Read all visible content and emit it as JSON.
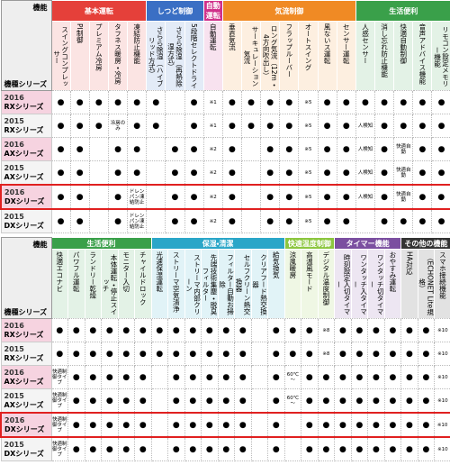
{
  "tables": [
    {
      "corner": {
        "top": "機能",
        "bottom": "機種シリーズ"
      },
      "groups": [
        {
          "name": "基本運転",
          "color": "#e5403a",
          "columns": [
            "スイングコンプレッサー",
            "PI制御",
            "プレミアム冷房",
            "タフネス暖房・冷房",
            "凍結防止機能"
          ]
        },
        {
          "name": "しつど制御",
          "color": "#3a6fc4",
          "columns": [
            "さらら除湿（ハイブリッド方式）",
            "さらら除湿（再熱除湿方式）",
            "5段階セレクトドライ"
          ]
        },
        {
          "name": "自動運転",
          "color": "#d0308a",
          "columns": [
            "自動運転"
          ]
        },
        {
          "name": "気流制御",
          "color": "#f08a24",
          "columns": [
            "垂直気流",
            "サーキュレーション気流",
            "ロング気流（12m・4方向吹出し）",
            "フラップルーバー",
            "オートスイング",
            "風ないス運転",
            "センサー運転"
          ]
        },
        {
          "name": "生活便利",
          "color": "#3aa04a",
          "columns": [
            "人感センサー",
            "消し忘れ防止機能",
            "快適自動制御",
            "音声アドバイス機能",
            "リモコン設定メモリー機能"
          ]
        }
      ],
      "rows": [
        {
          "year": "2016",
          "series": "RXシリーズ",
          "cells": [
            "●",
            "●",
            "●",
            "●",
            "●",
            "●",
            null,
            "●",
            "※1",
            "●",
            "●",
            "●",
            "●",
            "※5",
            "●",
            "●",
            "●",
            "●",
            "●",
            "●",
            "●"
          ]
        },
        {
          "year": "2015",
          "series": "RXシリーズ",
          "cells": [
            "●",
            "●",
            "●",
            "冷房のみ",
            "●",
            "●",
            null,
            "●",
            "※1",
            "●",
            "●",
            "●",
            "●",
            "※5",
            "●",
            "●",
            "人検知",
            "●",
            "●",
            "●",
            "●"
          ]
        },
        {
          "year": "2016",
          "series": "AXシリーズ",
          "cells": [
            "●",
            "●",
            null,
            "●",
            "●",
            null,
            "●",
            "●",
            "※2",
            "●",
            null,
            "●",
            "●",
            "※5",
            "●",
            "●",
            "人検知",
            "●",
            "快適自動",
            "●",
            "●"
          ]
        },
        {
          "year": "2015",
          "series": "AXシリーズ",
          "cells": [
            "●",
            "●",
            null,
            "●",
            "●",
            null,
            "●",
            "●",
            "※2",
            "●",
            null,
            "●",
            "●",
            "※5",
            "●",
            "●",
            "人検知",
            "●",
            "快適自動",
            "●",
            "●"
          ]
        },
        {
          "year": "2016",
          "series": "DXシリーズ",
          "highlighted": true,
          "cells": [
            "●",
            "●",
            null,
            "●",
            "ドレンパン凍結防止",
            null,
            "●",
            "●",
            "※2",
            "●",
            null,
            "●",
            "●",
            "※5",
            "●",
            "●",
            "人検知",
            "●",
            "快適自動",
            "●",
            "●"
          ]
        },
        {
          "year": "2015",
          "series": "DXシリーズ",
          "cells": [
            "●",
            "●",
            null,
            "●",
            "ドレンパン凍結防止",
            null,
            "●",
            "●",
            "※2",
            "●",
            null,
            "●",
            "●",
            "※5",
            "●",
            "●",
            null,
            "●",
            "●",
            "●",
            "●"
          ]
        }
      ]
    },
    {
      "corner": {
        "top": "機能",
        "bottom": "機種シリーズ"
      },
      "groups": [
        {
          "name": "生活便利",
          "color": "#3aa04a",
          "columns": [
            "快適エコナビ",
            "パワフル運転",
            "ランドリー乾燥",
            "本体運転・停止スイッチ",
            "モニター入切",
            "チャイルドロック"
          ]
        },
        {
          "name": "保湿・清潔",
          "color": "#2aa6c8",
          "columns": [
            "光速保湿運転",
            "ストリーマ空気清浄",
            "ストリーマ内部クリーン",
            "先端技術集塵・脱臭フィルター",
            "フィルター自動お掃除",
            "セルフクリーン熱交換器",
            "クリアフード熱交換器",
            "給気換気"
          ]
        },
        {
          "name": "快適温度制御",
          "color": "#8cc63f",
          "columns": [
            "涼風暖房",
            "高温風モード",
            "デジタル温度制御"
          ]
        },
        {
          "name": "タイマー機能",
          "color": "#7b4fa0",
          "columns": [
            "時刻設定入切タイマー",
            "ワンタッチ入タイマー",
            "ワンタッチ切タイマー",
            "おやすみ運転"
          ]
        },
        {
          "name": "その他の機能",
          "color": "#333333",
          "columns": [
            "HA対応",
            "HEMS対応（ECHONET Lite規格）",
            "スマホ接続機能"
          ]
        }
      ],
      "rows": [
        {
          "year": "2016",
          "series": "RXシリーズ",
          "cells": [
            "●",
            "●",
            "●",
            "●",
            "●",
            "●",
            "●",
            "●",
            "●",
            "●",
            "●",
            "●",
            null,
            "●",
            "●",
            "●",
            "※8",
            "●",
            "●",
            "●",
            "●",
            "●",
            "●",
            "※10"
          ]
        },
        {
          "year": "2015",
          "series": "RXシリーズ",
          "cells": [
            "●",
            "●",
            "●",
            "●",
            "●",
            "●",
            "●",
            "●",
            "●",
            "●",
            "●",
            "●",
            null,
            "●",
            "●",
            "●",
            "※8",
            "●",
            "●",
            "●",
            "●",
            "●",
            "●",
            "※10"
          ]
        },
        {
          "year": "2016",
          "series": "AXシリーズ",
          "cells": [
            "快適制御タイプ",
            "●",
            "●",
            "●",
            "●",
            "●",
            null,
            "●",
            "●",
            "●",
            "●",
            "●",
            null,
            "●",
            "60℃～",
            "●",
            "●",
            "●",
            "●",
            "●",
            "●",
            "●",
            "●",
            "※10"
          ]
        },
        {
          "year": "2015",
          "series": "AXシリーズ",
          "cells": [
            "快適制御タイプ",
            "●",
            "●",
            "●",
            "●",
            "●",
            null,
            "●",
            "●",
            "●",
            "●",
            "●",
            null,
            "●",
            "60℃～",
            "●",
            "●",
            "●",
            "●",
            "●",
            "●",
            "●",
            "●",
            "※10"
          ]
        },
        {
          "year": "2016",
          "series": "DXシリーズ",
          "highlighted": true,
          "cells": [
            "快適制御タイプ",
            "●",
            "●",
            "●",
            "●",
            "●",
            null,
            "●",
            "●",
            "●",
            "●",
            "●",
            null,
            "●",
            null,
            "●",
            "●",
            "●",
            "●",
            "●",
            "●",
            "●",
            "●",
            "※10"
          ]
        },
        {
          "year": "2015",
          "series": "DXシリーズ",
          "cells": [
            "快適制御タイプ",
            "●",
            "●",
            "●",
            "●",
            "●",
            null,
            "●",
            "●",
            "●",
            "●",
            "●",
            null,
            "●",
            null,
            "●",
            "●",
            "●",
            "●",
            "●",
            "●",
            "●",
            "●",
            "※10"
          ]
        }
      ]
    }
  ]
}
